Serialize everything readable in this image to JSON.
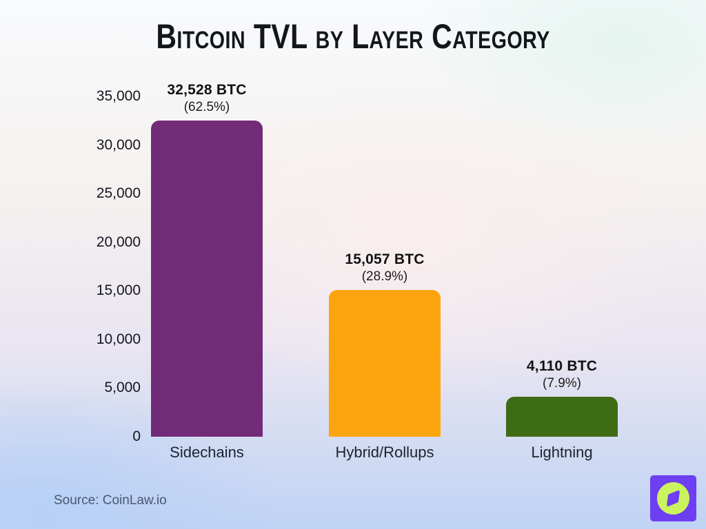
{
  "page": {
    "source_text": "Source: CoinLaw.io",
    "logo": {
      "name": "coinlaw-compass-logo",
      "square_color": "#6D3EF2",
      "circle_color": "#CBF35E"
    }
  },
  "chart_data": {
    "type": "bar",
    "title": "Bitcoin TVL by Layer Category",
    "categories": [
      "Sidechains",
      "Hybrid/Rollups",
      "Lightning"
    ],
    "values": [
      32528,
      15057,
      4110
    ],
    "value_labels": [
      "32,528 BTC",
      "15,057 BTC",
      "4,110 BTC"
    ],
    "pct_labels": [
      "(62.5%)",
      "(28.9%)",
      "(7.9%)"
    ],
    "bar_colors": [
      "#722B78",
      "#FCA40D",
      "#3E6C15"
    ],
    "xlabel": "",
    "ylabel": "",
    "ylim": [
      0,
      35000
    ],
    "yticks": [
      0,
      5000,
      10000,
      15000,
      20000,
      25000,
      30000,
      35000
    ],
    "ytick_labels": [
      "0",
      "5,000",
      "10,000",
      "15,000",
      "20,000",
      "25,000",
      "30,000",
      "35,000"
    ],
    "grid": false,
    "legend": false
  }
}
